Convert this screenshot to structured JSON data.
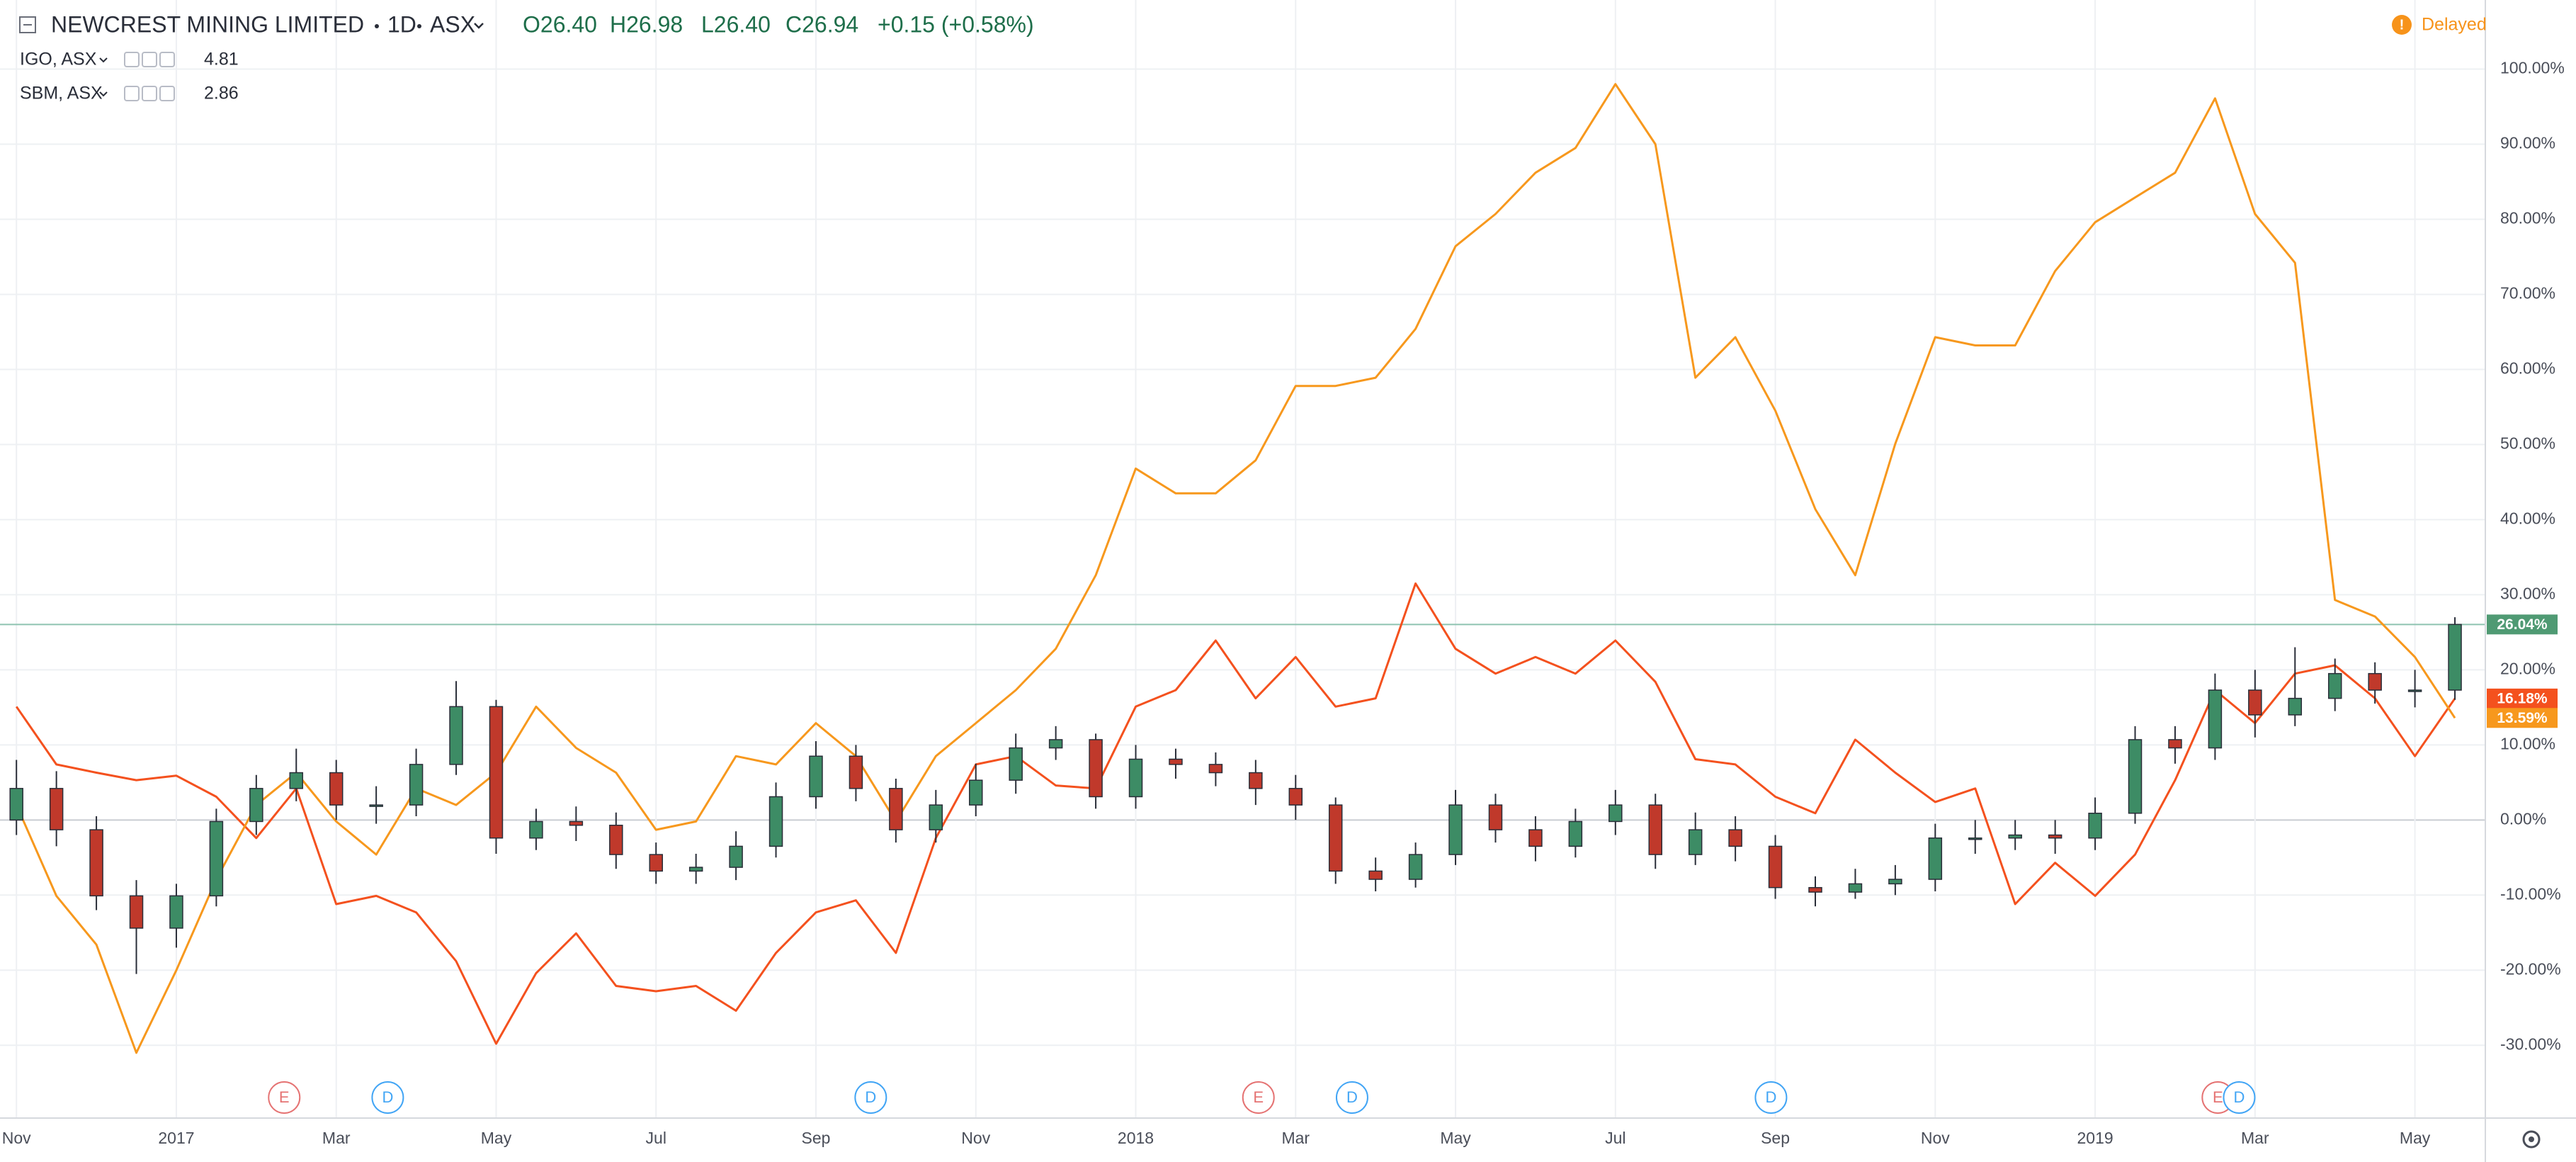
{
  "chart_data": {
    "type": "candlestick",
    "title": "NEWCREST MINING LIMITED",
    "interval": "1D",
    "exchange": "ASX",
    "ohlc": [
      "O26.40",
      "H26.98",
      "L26.40",
      "C26.94",
      "+0.15 (+0.58%)"
    ],
    "status_icon": "!",
    "status": "Delayed",
    "status_color": "#f7931a",
    "categories": [
      "Nov",
      null,
      null,
      null,
      "2017",
      null,
      null,
      null,
      "Mar",
      null,
      null,
      null,
      "May",
      null,
      null,
      null,
      "Jul",
      null,
      null,
      null,
      "Sep",
      null,
      null,
      null,
      "Nov",
      null,
      null,
      null,
      "2018",
      null,
      null,
      null,
      "Mar",
      null,
      null,
      null,
      "May",
      null,
      null,
      null,
      "Jul",
      null,
      null,
      null,
      "Sep",
      null,
      null,
      null,
      "Nov",
      null,
      null,
      null,
      "2019",
      null,
      null,
      null,
      "Mar",
      null,
      null,
      null,
      "May",
      null
    ],
    "open": [
      0.0,
      4.2,
      -1.3,
      -10.1,
      -14.4,
      -10.1,
      -0.2,
      4.2,
      6.3,
      2.0,
      2.0,
      7.4,
      15.1,
      -2.4,
      -0.2,
      -0.7,
      -4.6,
      -6.8,
      -6.3,
      -3.5,
      3.1,
      8.5,
      4.2,
      -1.3,
      2.0,
      5.3,
      9.6,
      10.7,
      3.1,
      8.1,
      7.4,
      6.3,
      4.2,
      2.0,
      -6.8,
      -7.9,
      -4.6,
      2.0,
      -1.3,
      -3.5,
      -0.2,
      2.0,
      -4.6,
      -1.3,
      -3.5,
      -9.0,
      -9.6,
      -8.5,
      -7.9,
      -2.4,
      -2.4,
      -2.0,
      -2.4,
      0.9,
      10.7,
      9.6,
      17.3,
      14.0,
      16.2,
      19.5,
      17.3,
      17.3
    ],
    "high": [
      8.0,
      6.5,
      0.5,
      -8.0,
      -8.5,
      1.5,
      6.0,
      9.5,
      8.0,
      4.5,
      9.5,
      18.5,
      16.0,
      1.5,
      1.8,
      1.0,
      -3.0,
      -4.5,
      -1.5,
      5.0,
      10.5,
      10.0,
      5.5,
      4.0,
      7.5,
      11.5,
      12.5,
      11.5,
      10.0,
      9.5,
      9.0,
      8.0,
      6.0,
      3.0,
      -5.0,
      -3.0,
      4.0,
      3.5,
      0.5,
      1.5,
      4.0,
      3.5,
      1.0,
      0.5,
      -2.0,
      -7.5,
      -6.5,
      -6.0,
      -0.5,
      0.0,
      0.0,
      0.0,
      3.0,
      12.5,
      12.5,
      19.5,
      20.0,
      23.0,
      21.5,
      21.0,
      20.0,
      27.0
    ],
    "low": [
      -2.0,
      -3.5,
      -12.0,
      -20.5,
      -17.0,
      -11.5,
      -2.0,
      2.5,
      0.0,
      -0.5,
      0.5,
      6.0,
      -4.5,
      -4.0,
      -2.8,
      -6.5,
      -8.5,
      -8.5,
      -8.0,
      -5.0,
      1.5,
      2.5,
      -3.0,
      -3.0,
      0.5,
      3.5,
      8.0,
      1.5,
      1.5,
      5.5,
      4.5,
      2.0,
      0.0,
      -8.5,
      -9.5,
      -9.0,
      -6.0,
      -3.0,
      -5.5,
      -5.0,
      -2.0,
      -6.5,
      -6.0,
      -5.5,
      -10.5,
      -11.5,
      -10.5,
      -10.0,
      -9.5,
      -4.5,
      -4.0,
      -4.5,
      -4.0,
      -0.5,
      7.5,
      8.0,
      11.0,
      12.5,
      14.5,
      15.5,
      15.0,
      16.0
    ],
    "close": [
      4.2,
      -1.3,
      -10.1,
      -14.4,
      -10.1,
      -0.2,
      4.2,
      6.3,
      2.0,
      2.0,
      7.4,
      15.1,
      -2.4,
      -0.2,
      -0.7,
      -4.6,
      -6.8,
      -6.3,
      -3.5,
      3.1,
      8.5,
      4.2,
      -1.3,
      2.0,
      5.3,
      9.6,
      10.7,
      3.1,
      8.1,
      7.4,
      6.3,
      4.2,
      2.0,
      -6.8,
      -7.9,
      -4.6,
      2.0,
      -1.3,
      -3.5,
      -0.2,
      2.0,
      -4.6,
      -1.3,
      -3.5,
      -9.0,
      -9.6,
      -8.5,
      -7.9,
      -2.4,
      -2.4,
      -2.0,
      -2.4,
      0.9,
      10.7,
      9.6,
      17.3,
      14.0,
      16.2,
      19.5,
      17.3,
      17.3,
      26.04
    ],
    "up_color": "#3d8c65",
    "down_color": "#c0392b",
    "last_label": "26.04%",
    "last_label_color": "#4f9a73",
    "series": [
      {
        "type": "line",
        "name": "IGO, ASX",
        "legend_value": "4.81",
        "color": "#f4511e",
        "last_label": "16.18%",
        "values": [
          15.1,
          7.4,
          6.3,
          5.3,
          5.9,
          3.1,
          -2.4,
          4.2,
          -11.2,
          -10.1,
          -12.3,
          -18.8,
          -29.8,
          -20.4,
          -15.1,
          -22.1,
          -22.8,
          -22.1,
          -25.4,
          -17.7,
          -12.3,
          -10.7,
          -17.7,
          -2.4,
          7.4,
          8.5,
          4.6,
          4.2,
          15.1,
          17.3,
          23.9,
          16.2,
          21.7,
          15.1,
          16.2,
          31.5,
          22.8,
          19.5,
          21.7,
          19.5,
          23.9,
          18.4,
          8.1,
          7.4,
          3.1,
          0.9,
          10.7,
          6.3,
          2.4,
          4.2,
          -11.2,
          -5.7,
          -10.1,
          -4.6,
          5.3,
          17.3,
          12.9,
          19.5,
          20.6,
          16.2,
          8.5,
          16.18
        ]
      },
      {
        "type": "line",
        "name": "SBM, ASX",
        "legend_value": "2.86",
        "color": "#f7981d",
        "last_label": "13.59%",
        "values": [
          2.0,
          -10.1,
          -16.6,
          -31.0,
          -20.0,
          -7.9,
          2.0,
          6.3,
          -0.2,
          -4.6,
          4.2,
          2.0,
          6.3,
          15.1,
          9.6,
          6.3,
          -1.3,
          -0.2,
          8.5,
          7.4,
          12.9,
          8.5,
          -0.2,
          8.5,
          12.9,
          17.3,
          22.8,
          32.6,
          46.8,
          43.5,
          43.5,
          47.9,
          57.8,
          57.8,
          58.9,
          65.4,
          76.4,
          80.7,
          86.2,
          89.5,
          98.0,
          90.0,
          58.9,
          64.3,
          54.5,
          41.4,
          32.6,
          50.1,
          64.3,
          63.2,
          63.2,
          73.1,
          79.6,
          82.9,
          86.2,
          96.1,
          80.7,
          74.2,
          29.3,
          27.1,
          21.7,
          13.59
        ]
      }
    ],
    "events": [
      {
        "label": "E",
        "color": "#e57373"
      },
      {
        "label": "D",
        "color": "#42a5f5"
      },
      {
        "label": "D",
        "color": "#42a5f5"
      },
      {
        "label": "E",
        "color": "#e57373"
      },
      {
        "label": "D",
        "color": "#42a5f5"
      },
      {
        "label": "D",
        "color": "#42a5f5"
      },
      {
        "label": "E",
        "color": "#e57373"
      },
      {
        "label": "D",
        "color": "#42a5f5"
      }
    ],
    "ylim": [
      -39.6,
      109.2
    ],
    "yticks": [
      {
        "value": -30,
        "label": "-30.00%"
      },
      {
        "value": -20,
        "label": "-20.00%"
      },
      {
        "value": -10,
        "label": "-10.00%"
      },
      {
        "value": 0,
        "label": "0.00%"
      },
      {
        "value": 10,
        "label": "10.00%"
      },
      {
        "value": 20,
        "label": "20.00%"
      },
      {
        "value": 30,
        "label": "30.00%"
      },
      {
        "value": 40,
        "label": "40.00%"
      },
      {
        "value": 50,
        "label": "50.00%"
      },
      {
        "value": 60,
        "label": "60.00%"
      },
      {
        "value": 70,
        "label": "70.00%"
      },
      {
        "value": 80,
        "label": "80.00%"
      },
      {
        "value": 90,
        "label": "90.00%"
      },
      {
        "value": 100,
        "label": "100.00%"
      }
    ],
    "grid": true
  }
}
